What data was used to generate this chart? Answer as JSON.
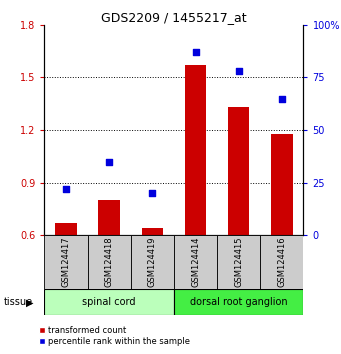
{
  "title": "GDS2209 / 1455217_at",
  "samples": [
    "GSM124417",
    "GSM124418",
    "GSM124419",
    "GSM124414",
    "GSM124415",
    "GSM124416"
  ],
  "red_values": [
    0.67,
    0.8,
    0.64,
    1.57,
    1.33,
    1.18
  ],
  "blue_values_pct": [
    22,
    35,
    20,
    87,
    78,
    65
  ],
  "ylim_left": [
    0.6,
    1.8
  ],
  "ylim_right": [
    0,
    100
  ],
  "yticks_left": [
    0.6,
    0.9,
    1.2,
    1.5,
    1.8
  ],
  "yticks_right": [
    0,
    25,
    50,
    75,
    100
  ],
  "ytick_labels_left": [
    "0.6",
    "0.9",
    "1.2",
    "1.5",
    "1.8"
  ],
  "ytick_labels_right": [
    "0",
    "25",
    "50",
    "75",
    "100%"
  ],
  "groups": [
    {
      "label": "spinal cord",
      "indices": [
        0,
        1,
        2
      ],
      "color": "#bbffbb"
    },
    {
      "label": "dorsal root ganglion",
      "indices": [
        3,
        4,
        5
      ],
      "color": "#44ee44"
    }
  ],
  "bar_color": "#cc0000",
  "dot_color": "#0000dd",
  "bg_plot": "#ffffff",
  "bg_label": "#cccccc",
  "tissue_label": "tissue",
  "legend_red": "transformed count",
  "legend_blue": "percentile rank within the sample",
  "title_fontsize": 9,
  "tick_fontsize": 7,
  "sample_fontsize": 6,
  "group_fontsize": 7,
  "legend_fontsize": 6,
  "grid_yticks": [
    0.9,
    1.2,
    1.5
  ],
  "bar_width": 0.5
}
